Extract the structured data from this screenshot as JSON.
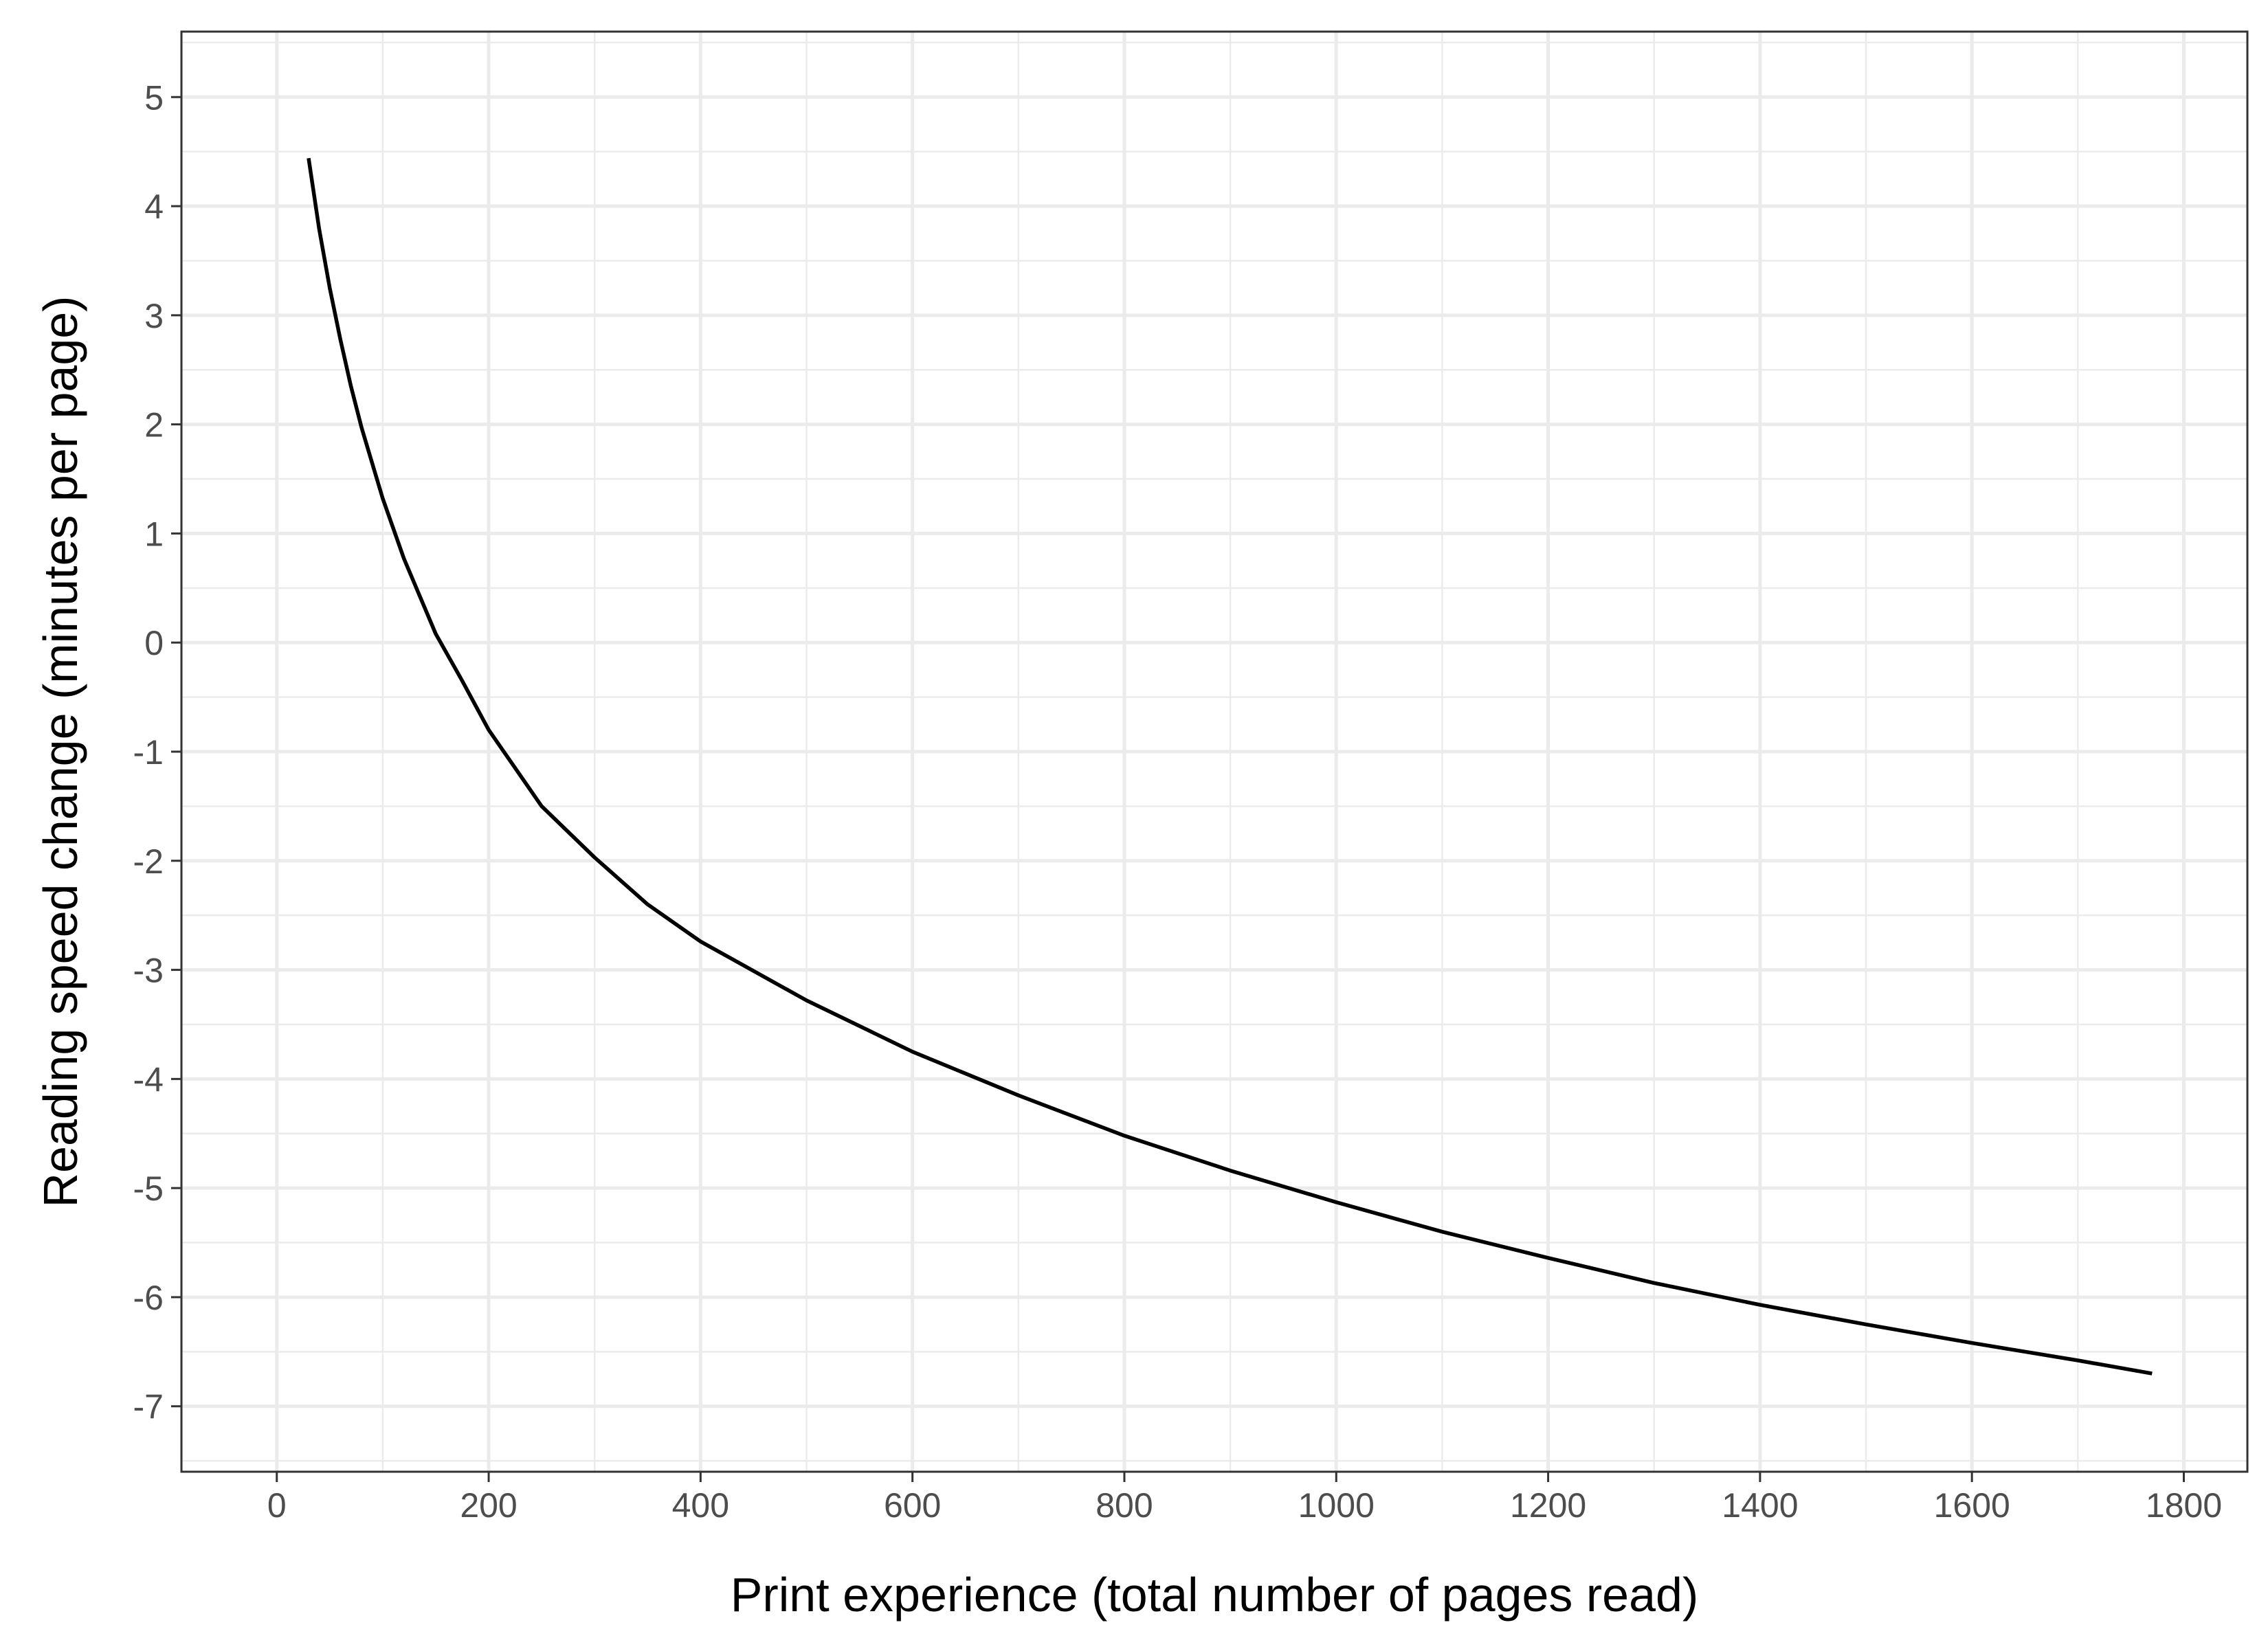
{
  "chart_data": {
    "type": "line",
    "title": "",
    "xlabel": "Print experience (total number of pages read)",
    "ylabel": "Reading speed change (minutes per page)",
    "xlim": [
      -90,
      1860
    ],
    "ylim": [
      -7.6,
      5.6
    ],
    "x_ticks": [
      0,
      200,
      400,
      600,
      800,
      1000,
      1200,
      1400,
      1600,
      1800
    ],
    "y_ticks": [
      5,
      4,
      3,
      2,
      1,
      0,
      -1,
      -2,
      -3,
      -4,
      -5,
      -6,
      -7
    ],
    "x_tick_labels": [
      "0",
      "200",
      "400",
      "600",
      "800",
      "1000",
      "1200",
      "1400",
      "1600",
      "1800"
    ],
    "y_tick_labels": [
      "5",
      "4",
      "3",
      "2",
      "1",
      "0",
      "-1",
      "-2",
      "-3",
      "-4",
      "-5",
      "-6",
      "-7"
    ],
    "x_minor_ticks": [
      -100,
      100,
      300,
      500,
      700,
      900,
      1100,
      1300,
      1500,
      1700
    ],
    "y_minor_ticks": [
      5.5,
      4.5,
      3.5,
      2.5,
      1.5,
      0.5,
      -0.5,
      -1.5,
      -2.5,
      -3.5,
      -4.5,
      -5.5,
      -6.5,
      -7.5
    ],
    "grid": true,
    "legend": "none",
    "colors": {
      "line": "#000000",
      "grid": "#ebebeb",
      "panel_border": "#333333",
      "tick_text": "#4d4d4d"
    },
    "series": [
      {
        "x": [
          30,
          40,
          50,
          60,
          70,
          80,
          100,
          120,
          150,
          175,
          200,
          250,
          300,
          350,
          400,
          500,
          600,
          700,
          800,
          900,
          1000,
          1100,
          1200,
          1300,
          1400,
          1500,
          1600,
          1700,
          1770
        ],
        "y": [
          4.44,
          3.79,
          3.25,
          2.78,
          2.35,
          1.97,
          1.32,
          0.77,
          0.08,
          -0.35,
          -0.8,
          -1.5,
          -1.97,
          -2.4,
          -2.74,
          -3.28,
          -3.75,
          -4.15,
          -4.52,
          -4.84,
          -5.13,
          -5.4,
          -5.64,
          -5.87,
          -6.07,
          -6.25,
          -6.42,
          -6.58,
          -6.7
        ]
      }
    ]
  }
}
